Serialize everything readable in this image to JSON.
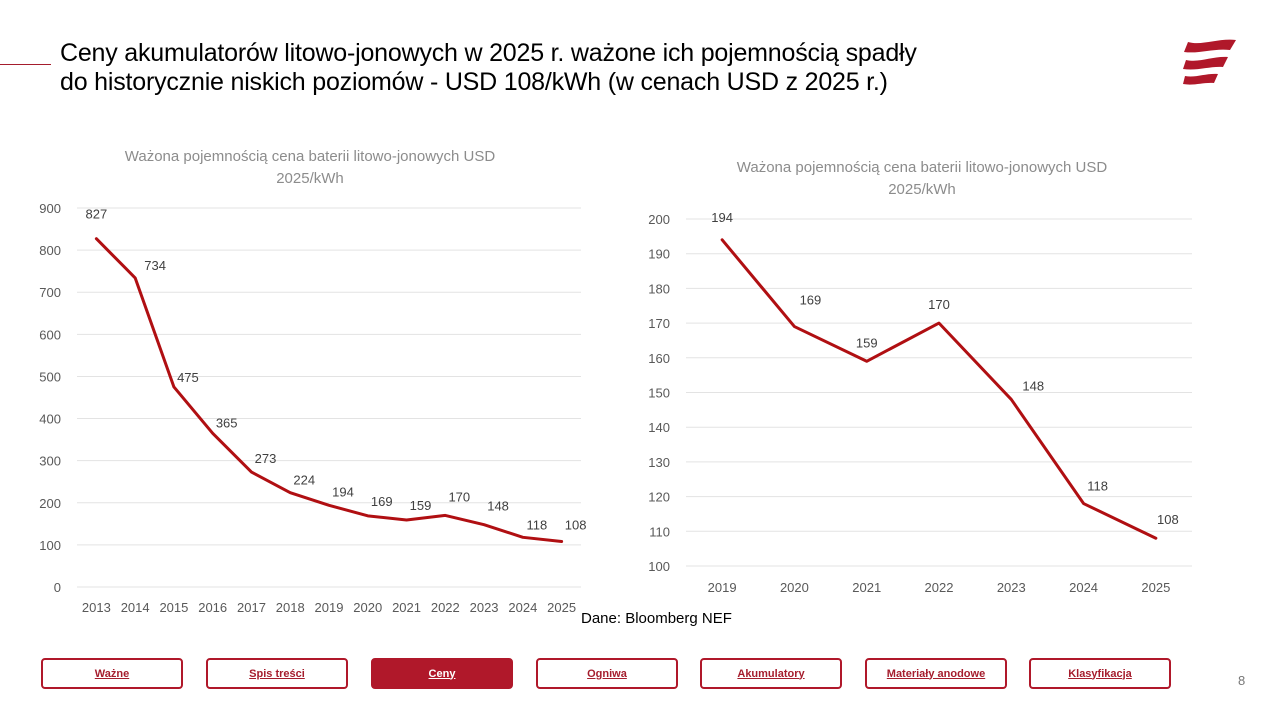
{
  "slide": {
    "title_line1": "Ceny akumulatorów litowo-jonowych w 2025 r. ważone ich pojemnością spadły",
    "title_line2": "do historycznie niskich poziomów - USD 108/kWh (w cenach USD z 2025 r.)",
    "source": "Dane: Bloomberg NEF",
    "page_number": "8",
    "accent_color": "#b0182a",
    "line_color": "#b00f12"
  },
  "nav": {
    "items": [
      {
        "label": "Ważne",
        "active": false
      },
      {
        "label": "Spis treści",
        "active": false
      },
      {
        "label": "Ceny",
        "active": true
      },
      {
        "label": "Ogniwa",
        "active": false
      },
      {
        "label": "Akumulatory",
        "active": false
      },
      {
        "label": "Materiały anodowe",
        "active": false
      },
      {
        "label": "Klasyfikacja",
        "active": false
      }
    ]
  },
  "chart_data": [
    {
      "type": "line",
      "title_line1": "Ważona pojemnością cena baterii litowo-jonowych USD",
      "title_line2": "2025/kWh",
      "xlabel": "",
      "ylabel": "",
      "categories": [
        "2013",
        "2014",
        "2015",
        "2016",
        "2017",
        "2018",
        "2019",
        "2020",
        "2021",
        "2022",
        "2023",
        "2024",
        "2025"
      ],
      "series": [
        {
          "name": "Cena USD 2025/kWh",
          "values": [
            827,
            734,
            475,
            365,
            273,
            224,
            194,
            169,
            159,
            170,
            148,
            118,
            108
          ]
        }
      ],
      "ylim": [
        0,
        900
      ],
      "yticks": [
        0,
        100,
        200,
        300,
        400,
        500,
        600,
        700,
        800,
        900
      ],
      "grid": true,
      "legend": "none",
      "data_labels": true
    },
    {
      "type": "line",
      "title_line1": "Ważona pojemnością cena baterii litowo-jonowych USD",
      "title_line2": "2025/kWh",
      "xlabel": "",
      "ylabel": "",
      "categories": [
        "2019",
        "2020",
        "2021",
        "2022",
        "2023",
        "2024",
        "2025"
      ],
      "series": [
        {
          "name": "Cena USD 2025/kWh",
          "values": [
            194,
            169,
            159,
            170,
            148,
            118,
            108
          ]
        }
      ],
      "ylim": [
        100,
        200
      ],
      "yticks": [
        100,
        110,
        120,
        130,
        140,
        150,
        160,
        170,
        180,
        190,
        200
      ],
      "grid": true,
      "legend": "none",
      "data_labels": true
    }
  ]
}
